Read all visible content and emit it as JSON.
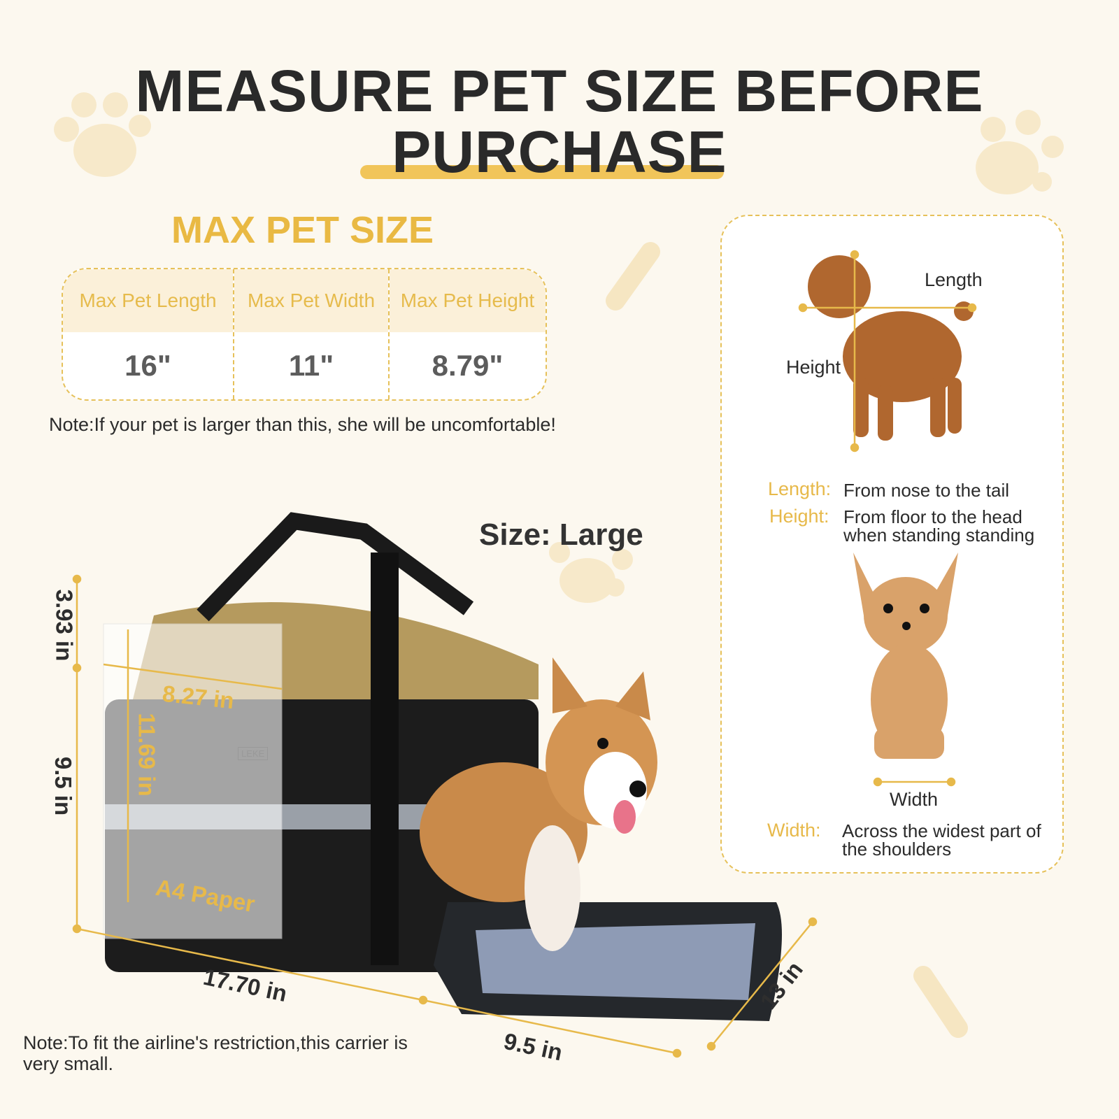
{
  "header": {
    "title_line1": "MEASURE PET SIZE BEFORE",
    "title_line2": "PURCHASE"
  },
  "max_size": {
    "title": "MAX PET SIZE",
    "columns": [
      {
        "label": "Max Pet Length",
        "value": "16\""
      },
      {
        "label": "Max Pet Width",
        "value": "11\""
      },
      {
        "label": "Max Pet Height",
        "value": "8.79\""
      }
    ],
    "note": "Note:If your pet is larger than this, she will be uncomfortable!"
  },
  "product": {
    "size_label": "Size: Large",
    "brand": "LEKE",
    "dimensions": {
      "top_height": "3.93 in",
      "height": "9.5 in",
      "length": "17.70 in",
      "width": "9.5 in",
      "depth": "13 in"
    },
    "paper": {
      "width": "8.27 in",
      "height": "11.69 in",
      "label": "A4 Paper"
    },
    "note": "Note:To fit the airline's restriction,this carrier is very small."
  },
  "guide": {
    "length_label": "Length",
    "height_label": "Height",
    "width_label": "Width",
    "length_term": "Length:",
    "length_def": "From nose to the tail",
    "height_term": "Height:",
    "height_def": "From floor to the head when standing standing",
    "width_term": "Width:",
    "width_def": "Across the widest part of the shoulders"
  },
  "colors": {
    "background": "#fcf8ef",
    "accent": "#e9b943",
    "text": "#2a2a2a"
  }
}
